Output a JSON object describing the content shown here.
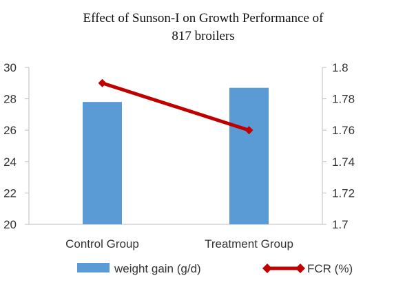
{
  "chart_data": {
    "type": "bar",
    "title_line1": "Effect of Sunson-I on Growth Performance of",
    "title_line2": "817 broilers",
    "categories": [
      "Control Group",
      "Treatment Group"
    ],
    "series": [
      {
        "name": "weight gain (g/d)",
        "chart": "bar",
        "axis": "left",
        "values": [
          27.8,
          28.7
        ],
        "color": "#5b9bd5"
      },
      {
        "name": "FCR (%)",
        "chart": "line",
        "axis": "right",
        "values": [
          1.79,
          1.76
        ],
        "color": "#c00000"
      }
    ],
    "y_left": {
      "min": 20,
      "max": 30,
      "ticks": [
        "20",
        "22",
        "24",
        "26",
        "28",
        "30"
      ]
    },
    "y_right": {
      "min": 1.7,
      "max": 1.8,
      "ticks": [
        "1.7",
        "1.72",
        "1.74",
        "1.76",
        "1.78",
        "1.8"
      ]
    },
    "grid": false,
    "legend_position": "bottom"
  }
}
